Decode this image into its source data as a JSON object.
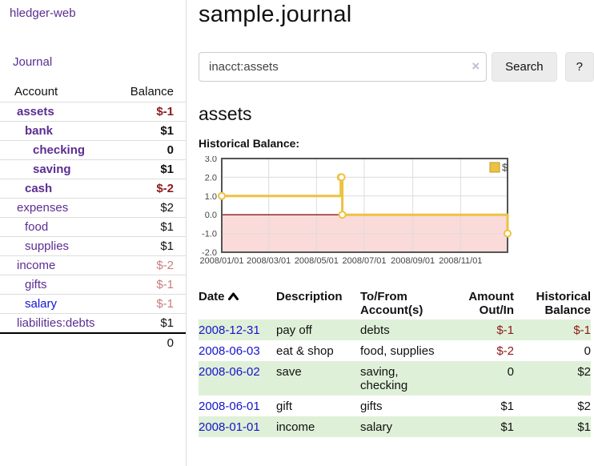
{
  "palette": {
    "link_purple": "#5c2d91",
    "link_blue": "#1414cc",
    "negative_strong": "#8b1a1a",
    "negative_soft": "#c87e7e",
    "row_stripe_green": "#dff0d8",
    "series_yellow": "#edc240"
  },
  "sidebar": {
    "brand": "hledger-web",
    "nav": {
      "journal_label": "Journal"
    },
    "accounts_header": {
      "account": "Account",
      "balance": "Balance"
    },
    "accounts": [
      {
        "name": "assets",
        "indent": 1,
        "bold": true,
        "name_color": "purple",
        "balance": "$-1",
        "balance_class": "neg"
      },
      {
        "name": "bank",
        "indent": 2,
        "bold": true,
        "name_color": "purple",
        "balance": "$1",
        "balance_class": ""
      },
      {
        "name": "checking",
        "indent": 3,
        "bold": true,
        "name_color": "purple",
        "balance": "0",
        "balance_class": ""
      },
      {
        "name": "saving",
        "indent": 3,
        "bold": true,
        "name_color": "purple",
        "balance": "$1",
        "balance_class": ""
      },
      {
        "name": "cash",
        "indent": 2,
        "bold": true,
        "name_color": "purple",
        "balance": "$-2",
        "balance_class": "neg"
      },
      {
        "name": "expenses",
        "indent": 1,
        "bold": false,
        "name_color": "purple",
        "balance": "$2",
        "balance_class": ""
      },
      {
        "name": "food",
        "indent": 2,
        "bold": false,
        "name_color": "purple",
        "balance": "$1",
        "balance_class": ""
      },
      {
        "name": "supplies",
        "indent": 2,
        "bold": false,
        "name_color": "purple",
        "balance": "$1",
        "balance_class": ""
      },
      {
        "name": "income",
        "indent": 1,
        "bold": false,
        "name_color": "purple",
        "balance": "$-2",
        "balance_class": "neg-soft"
      },
      {
        "name": "gifts",
        "indent": 2,
        "bold": false,
        "name_color": "purple",
        "balance": "$-1",
        "balance_class": "neg-soft"
      },
      {
        "name": "salary",
        "indent": 2,
        "bold": false,
        "name_color": "blue",
        "balance": "$-1",
        "balance_class": "neg-soft"
      },
      {
        "name": "liabilities:debts",
        "indent": 1,
        "bold": false,
        "name_color": "purple",
        "balance": "$1",
        "balance_class": ""
      }
    ],
    "total": "0"
  },
  "header": {
    "title": "sample.journal"
  },
  "search": {
    "value": "inacct:assets",
    "clear_icon": "×",
    "search_label": "Search",
    "help_label": "?"
  },
  "main": {
    "account_title": "assets",
    "chart_label": "Historical Balance:"
  },
  "chart_data": {
    "type": "line",
    "step": true,
    "title": "Historical Balance",
    "series": [
      {
        "name": "$",
        "color": "#edc240",
        "points": [
          [
            "2008-01-01",
            1
          ],
          [
            "2008-06-01",
            2
          ],
          [
            "2008-06-02",
            2
          ],
          [
            "2008-06-03",
            0
          ],
          [
            "2008-12-31",
            -1
          ]
        ]
      }
    ],
    "xlim": [
      "2008-01-01",
      "2008-12-31"
    ],
    "ylim": [
      -2,
      3
    ],
    "x_ticks": [
      "2008/01/01",
      "2008/03/01",
      "2008/05/01",
      "2008/07/01",
      "2008/09/01",
      "2008/11/01"
    ],
    "y_ticks": [
      3.0,
      2.0,
      1.0,
      0.0,
      -1.0,
      -2.0
    ],
    "grid": true,
    "legend_position": "top-right",
    "legend": [
      "$"
    ],
    "zero_line_color": "#871717",
    "negative_fill": "#fbdada",
    "grid_color": "#dcdcdc",
    "border_color": "#545454"
  },
  "register": {
    "columns": [
      {
        "label": "Date",
        "sorted": "asc"
      },
      {
        "label": "Description"
      },
      {
        "label": "To/From Account(s)"
      },
      {
        "label": "Amount Out/In"
      },
      {
        "label": "Historical Balance"
      }
    ],
    "rows": [
      {
        "date": "2008-12-31",
        "description": "pay off",
        "accounts": "debts",
        "amount": "$-1",
        "amount_neg": true,
        "balance": "$-1",
        "balance_neg": true
      },
      {
        "date": "2008-06-03",
        "description": "eat & shop",
        "accounts": "food, supplies",
        "amount": "$-2",
        "amount_neg": true,
        "balance": "0",
        "balance_neg": false
      },
      {
        "date": "2008-06-02",
        "description": "save",
        "accounts": "saving, checking",
        "amount": "0",
        "amount_neg": false,
        "balance": "$2",
        "balance_neg": false
      },
      {
        "date": "2008-06-01",
        "description": "gift",
        "accounts": "gifts",
        "amount": "$1",
        "amount_neg": false,
        "balance": "$2",
        "balance_neg": false
      },
      {
        "date": "2008-01-01",
        "description": "income",
        "accounts": "salary",
        "amount": "$1",
        "amount_neg": false,
        "balance": "$1",
        "balance_neg": false
      }
    ]
  }
}
